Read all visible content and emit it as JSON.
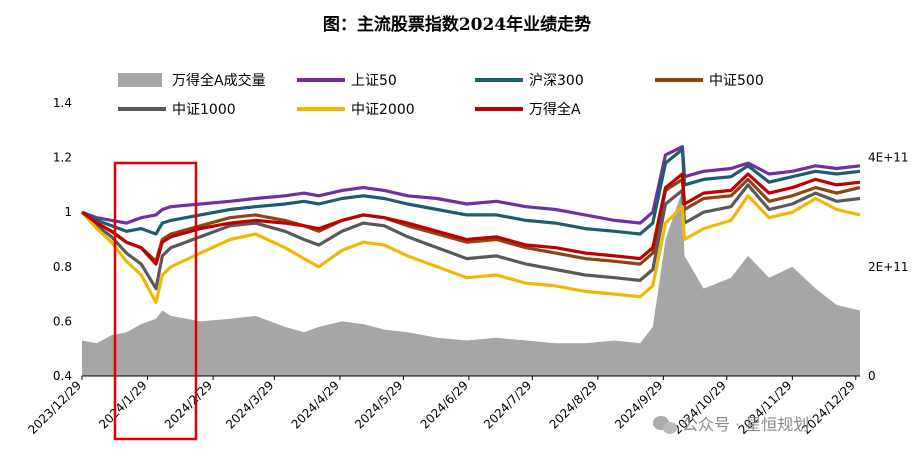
{
  "chart_data": {
    "type": "line",
    "title": "图：主流股票指数2024年业绩走势",
    "x_ticks": [
      "2023/12/29",
      "2024/1/29",
      "2024/2/29",
      "2024/3/29",
      "2024/4/29",
      "2024/5/29",
      "2024/6/29",
      "2024/7/29",
      "2024/8/29",
      "2024/9/29",
      "2024/10/29",
      "2024/11/29",
      "2024/12/29"
    ],
    "x": [
      "2023/12/29",
      "2024/1/5",
      "2024/1/12",
      "2024/1/19",
      "2024/1/26",
      "2024/2/2",
      "2024/2/5",
      "2024/2/9",
      "2024/2/23",
      "2024/3/8",
      "2024/3/20",
      "2024/4/3",
      "2024/4/12",
      "2024/4/19",
      "2024/4/30",
      "2024/5/10",
      "2024/5/20",
      "2024/5/31",
      "2024/6/14",
      "2024/6/28",
      "2024/7/12",
      "2024/7/26",
      "2024/8/9",
      "2024/8/23",
      "2024/9/6",
      "2024/9/18",
      "2024/9/24",
      "2024/9/30",
      "2024/10/8",
      "2024/10/9",
      "2024/10/18",
      "2024/10/31",
      "2024/11/8",
      "2024/11/18",
      "2024/11/29",
      "2024/12/10",
      "2024/12/20",
      "2024/12/31"
    ],
    "y_left": {
      "lim": [
        0.4,
        1.4
      ],
      "ticks": [
        "0.4",
        "0.6",
        "0.8",
        "1",
        "1.2",
        "1.4"
      ]
    },
    "y_right": {
      "lim": [
        0,
        500000000000.0
      ],
      "ticks": [
        "0",
        "2E+11",
        "4E+11"
      ]
    },
    "series": [
      {
        "name": "上证50",
        "color": "#7030A0",
        "values": [
          1.0,
          0.98,
          0.97,
          0.96,
          0.98,
          0.99,
          1.01,
          1.02,
          1.03,
          1.04,
          1.05,
          1.06,
          1.07,
          1.06,
          1.08,
          1.09,
          1.08,
          1.06,
          1.05,
          1.03,
          1.04,
          1.02,
          1.01,
          0.99,
          0.97,
          0.96,
          1.0,
          1.21,
          1.24,
          1.13,
          1.15,
          1.16,
          1.18,
          1.14,
          1.15,
          1.17,
          1.16,
          1.17
        ]
      },
      {
        "name": "沪深300",
        "color": "#1F5C6E",
        "values": [
          1.0,
          0.97,
          0.95,
          0.93,
          0.94,
          0.92,
          0.96,
          0.97,
          0.99,
          1.01,
          1.02,
          1.03,
          1.04,
          1.03,
          1.05,
          1.06,
          1.05,
          1.03,
          1.01,
          0.99,
          0.99,
          0.97,
          0.96,
          0.94,
          0.93,
          0.92,
          0.96,
          1.18,
          1.23,
          1.1,
          1.12,
          1.13,
          1.17,
          1.11,
          1.13,
          1.15,
          1.14,
          1.15
        ]
      },
      {
        "name": "中证500",
        "color": "#8B4513",
        "values": [
          1.0,
          0.96,
          0.93,
          0.89,
          0.87,
          0.82,
          0.9,
          0.92,
          0.95,
          0.98,
          0.99,
          0.97,
          0.95,
          0.93,
          0.97,
          0.99,
          0.98,
          0.95,
          0.92,
          0.89,
          0.9,
          0.87,
          0.85,
          0.83,
          0.82,
          0.81,
          0.85,
          1.08,
          1.12,
          1.01,
          1.05,
          1.06,
          1.12,
          1.04,
          1.06,
          1.09,
          1.07,
          1.09
        ]
      },
      {
        "name": "中证1000",
        "color": "#595959",
        "values": [
          1.0,
          0.95,
          0.91,
          0.85,
          0.81,
          0.72,
          0.84,
          0.87,
          0.91,
          0.95,
          0.96,
          0.93,
          0.9,
          0.88,
          0.93,
          0.96,
          0.95,
          0.91,
          0.87,
          0.83,
          0.84,
          0.81,
          0.79,
          0.77,
          0.76,
          0.75,
          0.79,
          1.03,
          1.08,
          0.96,
          1.0,
          1.02,
          1.1,
          1.01,
          1.03,
          1.07,
          1.04,
          1.05
        ]
      },
      {
        "name": "中证2000",
        "color": "#F2B705",
        "values": [
          1.0,
          0.94,
          0.89,
          0.82,
          0.77,
          0.67,
          0.77,
          0.8,
          0.85,
          0.9,
          0.92,
          0.87,
          0.83,
          0.8,
          0.86,
          0.89,
          0.88,
          0.84,
          0.8,
          0.76,
          0.77,
          0.74,
          0.73,
          0.71,
          0.7,
          0.69,
          0.73,
          0.96,
          1.02,
          0.9,
          0.94,
          0.97,
          1.06,
          0.98,
          1.0,
          1.05,
          1.01,
          0.99
        ]
      },
      {
        "name": "万得全A",
        "color": "#C00000",
        "values": [
          1.0,
          0.96,
          0.93,
          0.89,
          0.87,
          0.81,
          0.89,
          0.91,
          0.94,
          0.96,
          0.97,
          0.96,
          0.95,
          0.94,
          0.97,
          0.99,
          0.98,
          0.96,
          0.93,
          0.9,
          0.91,
          0.88,
          0.87,
          0.85,
          0.84,
          0.83,
          0.87,
          1.09,
          1.14,
          1.03,
          1.07,
          1.08,
          1.14,
          1.07,
          1.09,
          1.12,
          1.1,
          1.11
        ]
      }
    ],
    "volume": {
      "name": "万得全A成交量",
      "color": "#A6A6A6",
      "axis": "right",
      "values": [
        65000000000.0,
        60000000000.0,
        75000000000.0,
        80000000000.0,
        95000000000.0,
        105000000000.0,
        120000000000.0,
        110000000000.0,
        100000000000.0,
        105000000000.0,
        110000000000.0,
        90000000000.0,
        80000000000.0,
        90000000000.0,
        100000000000.0,
        95000000000.0,
        85000000000.0,
        80000000000.0,
        70000000000.0,
        65000000000.0,
        70000000000.0,
        65000000000.0,
        60000000000.0,
        60000000000.0,
        65000000000.0,
        60000000000.0,
        90000000000.0,
        250000000000.0,
        340000000000.0,
        220000000000.0,
        160000000000.0,
        180000000000.0,
        220000000000.0,
        180000000000.0,
        200000000000.0,
        160000000000.0,
        130000000000.0,
        120000000000.0
      ]
    },
    "grid": false,
    "legend_position": "top"
  },
  "watermark": "公众号 · 星恒规划",
  "colors": {
    "highlight_box": "#E00000"
  }
}
